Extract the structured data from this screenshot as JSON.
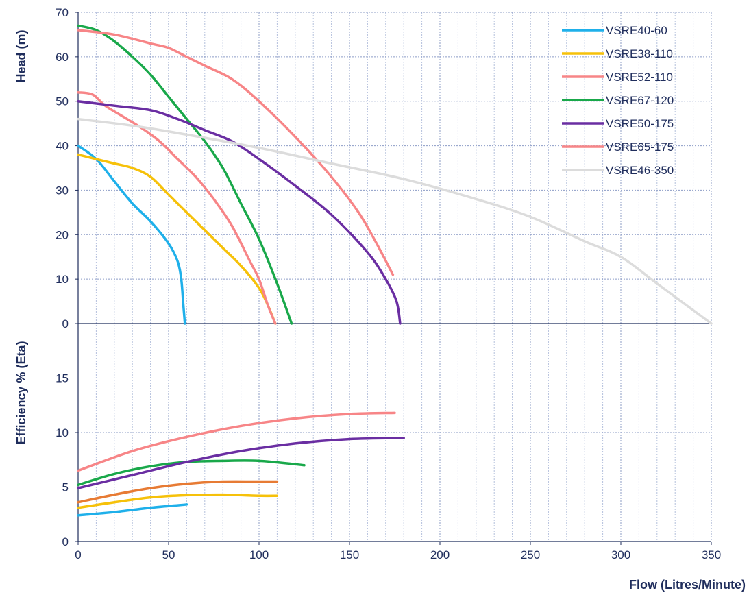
{
  "chart_data": [
    {
      "type": "line",
      "ylabel": "Head (m)",
      "ylim": [
        0,
        70
      ],
      "yticks": [
        0,
        10,
        20,
        30,
        40,
        50,
        60,
        70
      ],
      "xlim": [
        0,
        350
      ],
      "grid": true,
      "legend_position": "top-right",
      "series": [
        {
          "name": "VSRE40-60",
          "color": "#1fb0ea",
          "points": [
            [
              0,
              40
            ],
            [
              10,
              37
            ],
            [
              20,
              32
            ],
            [
              30,
              27
            ],
            [
              40,
              23
            ],
            [
              50,
              18
            ],
            [
              55,
              14
            ],
            [
              57,
              10
            ],
            [
              58,
              5
            ],
            [
              59,
              0
            ]
          ]
        },
        {
          "name": "VSRE38-110",
          "color": "#f6c10a",
          "points": [
            [
              0,
              38
            ],
            [
              10,
              37
            ],
            [
              20,
              36
            ],
            [
              30,
              35
            ],
            [
              40,
              33
            ],
            [
              50,
              29
            ],
            [
              60,
              25
            ],
            [
              70,
              21
            ],
            [
              80,
              17
            ],
            [
              90,
              13
            ],
            [
              100,
              8
            ],
            [
              105,
              4
            ],
            [
              109,
              0
            ]
          ]
        },
        {
          "name": "VSRE52-110",
          "color": "#f78587",
          "points": [
            [
              0,
              52
            ],
            [
              8,
              51.5
            ],
            [
              15,
              49
            ],
            [
              25,
              46.5
            ],
            [
              35,
              44
            ],
            [
              45,
              41
            ],
            [
              55,
              37
            ],
            [
              65,
              33
            ],
            [
              75,
              28
            ],
            [
              85,
              22
            ],
            [
              95,
              14
            ],
            [
              100,
              10
            ],
            [
              105,
              4
            ],
            [
              109,
              0
            ]
          ]
        },
        {
          "name": "VSRE67-120",
          "color": "#19a84a",
          "points": [
            [
              0,
              67
            ],
            [
              10,
              66
            ],
            [
              20,
              63.5
            ],
            [
              30,
              60
            ],
            [
              40,
              56
            ],
            [
              50,
              51
            ],
            [
              60,
              46
            ],
            [
              70,
              41
            ],
            [
              80,
              35
            ],
            [
              90,
              27
            ],
            [
              100,
              19
            ],
            [
              110,
              9
            ],
            [
              118,
              0
            ]
          ]
        },
        {
          "name": "VSRE50-175",
          "color": "#6a2ea2",
          "points": [
            [
              0,
              50
            ],
            [
              20,
              49
            ],
            [
              40,
              48
            ],
            [
              55,
              46
            ],
            [
              70,
              43.5
            ],
            [
              85,
              41
            ],
            [
              100,
              37
            ],
            [
              120,
              31
            ],
            [
              140,
              24.5
            ],
            [
              160,
              16
            ],
            [
              170,
              10
            ],
            [
              176,
              5
            ],
            [
              178,
              0
            ]
          ]
        },
        {
          "name": "VSRE65-175",
          "color": "#f78587",
          "points": [
            [
              0,
              66
            ],
            [
              20,
              65
            ],
            [
              40,
              63
            ],
            [
              50,
              62
            ],
            [
              60,
              60
            ],
            [
              70,
              58
            ],
            [
              85,
              55
            ],
            [
              100,
              50
            ],
            [
              120,
              42
            ],
            [
              140,
              33
            ],
            [
              155,
              25
            ],
            [
              165,
              18
            ],
            [
              174,
              11
            ]
          ]
        },
        {
          "name": "VSRE46-350",
          "color": "#dcdcdc",
          "points": [
            [
              0,
              46
            ],
            [
              30,
              44.5
            ],
            [
              60,
              42.5
            ],
            [
              100,
              39.5
            ],
            [
              140,
              36
            ],
            [
              180,
              32.5
            ],
            [
              220,
              28
            ],
            [
              250,
              24
            ],
            [
              280,
              18.5
            ],
            [
              300,
              15
            ],
            [
              320,
              9
            ],
            [
              335,
              4.5
            ],
            [
              350,
              0
            ]
          ]
        }
      ]
    },
    {
      "type": "line",
      "ylabel": "Efficiency % (Eta)",
      "xlabel": "Flow (Litres/Minute)",
      "ylim": [
        0,
        20
      ],
      "yticks": [
        0,
        5,
        10,
        15
      ],
      "xlim": [
        0,
        350
      ],
      "xticks": [
        0,
        50,
        100,
        150,
        200,
        250,
        300,
        350
      ],
      "grid": true,
      "series": [
        {
          "color": "#1fb0ea",
          "points": [
            [
              0,
              2.4
            ],
            [
              20,
              2.7
            ],
            [
              40,
              3.1
            ],
            [
              60,
              3.4
            ]
          ]
        },
        {
          "color": "#f6c10a",
          "points": [
            [
              0,
              3.1
            ],
            [
              20,
              3.6
            ],
            [
              40,
              4.05
            ],
            [
              60,
              4.25
            ],
            [
              80,
              4.3
            ],
            [
              100,
              4.2
            ],
            [
              110,
              4.2
            ]
          ]
        },
        {
          "color": "#e77b34",
          "points": [
            [
              0,
              3.6
            ],
            [
              20,
              4.3
            ],
            [
              40,
              4.9
            ],
            [
              60,
              5.3
            ],
            [
              80,
              5.5
            ],
            [
              100,
              5.5
            ],
            [
              110,
              5.5
            ]
          ]
        },
        {
          "color": "#19a84a",
          "points": [
            [
              0,
              5.2
            ],
            [
              20,
              6.2
            ],
            [
              40,
              6.9
            ],
            [
              60,
              7.3
            ],
            [
              80,
              7.4
            ],
            [
              100,
              7.4
            ],
            [
              125,
              7.0
            ]
          ]
        },
        {
          "color": "#6a2ea2",
          "points": [
            [
              0,
              4.9
            ],
            [
              30,
              6.1
            ],
            [
              60,
              7.3
            ],
            [
              90,
              8.3
            ],
            [
              120,
              9.0
            ],
            [
              150,
              9.4
            ],
            [
              180,
              9.5
            ]
          ]
        },
        {
          "color": "#f78587",
          "points": [
            [
              0,
              6.5
            ],
            [
              30,
              8.3
            ],
            [
              60,
              9.6
            ],
            [
              90,
              10.6
            ],
            [
              120,
              11.3
            ],
            [
              150,
              11.7
            ],
            [
              175,
              11.8
            ]
          ]
        }
      ]
    }
  ]
}
